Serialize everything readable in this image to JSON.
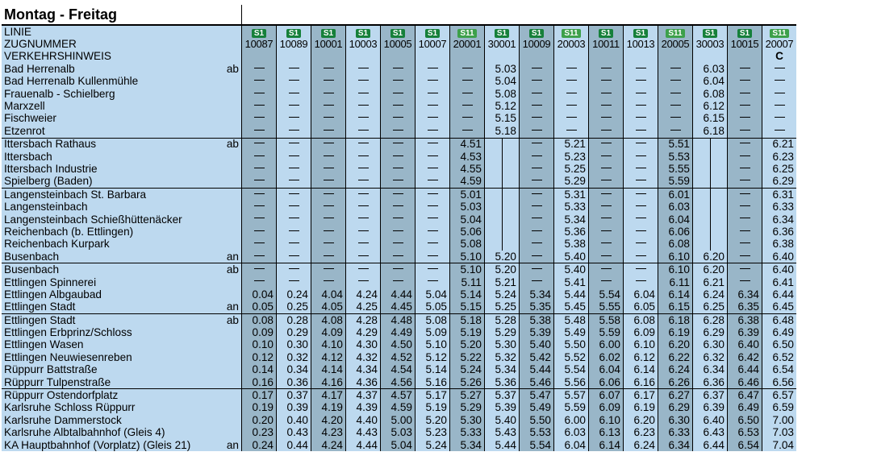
{
  "title": "Montag - Freitag",
  "header_labels": [
    "LINIE",
    "ZUGNUMMER",
    "VERKEHRSHINWEIS"
  ],
  "columns": [
    {
      "line": "S1",
      "zug": "10087",
      "note": ""
    },
    {
      "line": "S1",
      "zug": "10089",
      "note": ""
    },
    {
      "line": "S1",
      "zug": "10001",
      "note": ""
    },
    {
      "line": "S1",
      "zug": "10003",
      "note": ""
    },
    {
      "line": "S1",
      "zug": "10005",
      "note": ""
    },
    {
      "line": "S1",
      "zug": "10007",
      "note": ""
    },
    {
      "line": "S11",
      "zug": "20001",
      "note": ""
    },
    {
      "line": "S1",
      "zug": "30001",
      "note": ""
    },
    {
      "line": "S1",
      "zug": "10009",
      "note": ""
    },
    {
      "line": "S11",
      "zug": "20003",
      "note": ""
    },
    {
      "line": "S1",
      "zug": "10011",
      "note": ""
    },
    {
      "line": "S1",
      "zug": "10013",
      "note": ""
    },
    {
      "line": "S11",
      "zug": "20005",
      "note": ""
    },
    {
      "line": "S1",
      "zug": "30003",
      "note": ""
    },
    {
      "line": "S1",
      "zug": "10015",
      "note": ""
    },
    {
      "line": "S11",
      "zug": "20007",
      "note": "C"
    }
  ],
  "rows": [
    {
      "station": "Bad Herrenalb",
      "mark": "ab",
      "sep": false,
      "times": [
        "—",
        "—",
        "—",
        "—",
        "—",
        "—",
        "—",
        "5.03",
        "—",
        "—",
        "—",
        "—",
        "—",
        "6.03",
        "—",
        "—"
      ]
    },
    {
      "station": "Bad Herrenalb Kullenmühle",
      "mark": "",
      "sep": false,
      "times": [
        "—",
        "—",
        "—",
        "—",
        "—",
        "—",
        "—",
        "5.04",
        "—",
        "—",
        "—",
        "—",
        "—",
        "6.04",
        "—",
        "—"
      ]
    },
    {
      "station": "Frauenalb - Schielberg",
      "mark": "",
      "sep": false,
      "times": [
        "—",
        "—",
        "—",
        "—",
        "—",
        "—",
        "—",
        "5.08",
        "—",
        "—",
        "—",
        "—",
        "—",
        "6.08",
        "—",
        "—"
      ]
    },
    {
      "station": "Marxzell",
      "mark": "",
      "sep": false,
      "times": [
        "—",
        "—",
        "—",
        "—",
        "—",
        "—",
        "—",
        "5.12",
        "—",
        "—",
        "—",
        "—",
        "—",
        "6.12",
        "—",
        "—"
      ]
    },
    {
      "station": "Fischweier",
      "mark": "",
      "sep": false,
      "times": [
        "—",
        "—",
        "—",
        "—",
        "—",
        "—",
        "—",
        "5.15",
        "—",
        "—",
        "—",
        "—",
        "—",
        "6.15",
        "—",
        "—"
      ]
    },
    {
      "station": "Etzenrot",
      "mark": "",
      "sep": false,
      "times": [
        "—",
        "—",
        "—",
        "—",
        "—",
        "—",
        "—",
        "5.18",
        "—",
        "—",
        "—",
        "—",
        "—",
        "6.18",
        "—",
        "—"
      ]
    },
    {
      "station": "Ittersbach Rathaus",
      "mark": "ab",
      "sep": true,
      "times": [
        "—",
        "—",
        "—",
        "—",
        "—",
        "—",
        "4.51",
        "|",
        "—",
        "5.21",
        "—",
        "—",
        "5.51",
        "|",
        "—",
        "6.21"
      ]
    },
    {
      "station": "Ittersbach",
      "mark": "",
      "sep": false,
      "times": [
        "—",
        "—",
        "—",
        "—",
        "—",
        "—",
        "4.53",
        "|",
        "—",
        "5.23",
        "—",
        "—",
        "5.53",
        "|",
        "—",
        "6.23"
      ]
    },
    {
      "station": "Ittersbach Industrie",
      "mark": "",
      "sep": false,
      "times": [
        "—",
        "—",
        "—",
        "—",
        "—",
        "—",
        "4.55",
        "|",
        "—",
        "5.25",
        "—",
        "—",
        "5.55",
        "|",
        "—",
        "6.25"
      ]
    },
    {
      "station": "Spielberg (Baden)",
      "mark": "",
      "sep": false,
      "times": [
        "—",
        "—",
        "—",
        "—",
        "—",
        "—",
        "4.59",
        "|",
        "—",
        "5.29",
        "—",
        "—",
        "5.59",
        "|",
        "—",
        "6.29"
      ]
    },
    {
      "station": "Langensteinbach St. Barbara",
      "mark": "",
      "sep": true,
      "times": [
        "—",
        "—",
        "—",
        "—",
        "—",
        "—",
        "5.01",
        "|",
        "—",
        "5.31",
        "—",
        "—",
        "6.01",
        "|",
        "—",
        "6.31"
      ]
    },
    {
      "station": "Langensteinbach",
      "mark": "",
      "sep": false,
      "times": [
        "—",
        "—",
        "—",
        "—",
        "—",
        "—",
        "5.03",
        "|",
        "—",
        "5.33",
        "—",
        "—",
        "6.03",
        "|",
        "—",
        "6.33"
      ]
    },
    {
      "station": "Langensteinbach Schießhüttenäcker",
      "mark": "",
      "sep": false,
      "times": [
        "—",
        "—",
        "—",
        "—",
        "—",
        "—",
        "5.04",
        "|",
        "—",
        "5.34",
        "—",
        "—",
        "6.04",
        "|",
        "—",
        "6.34"
      ]
    },
    {
      "station": "Reichenbach (b. Ettlingen)",
      "mark": "",
      "sep": false,
      "times": [
        "—",
        "—",
        "—",
        "—",
        "—",
        "—",
        "5.06",
        "|",
        "—",
        "5.36",
        "—",
        "—",
        "6.06",
        "|",
        "—",
        "6.36"
      ]
    },
    {
      "station": "Reichenbach Kurpark",
      "mark": "",
      "sep": false,
      "times": [
        "—",
        "—",
        "—",
        "—",
        "—",
        "—",
        "5.08",
        "|",
        "—",
        "5.38",
        "—",
        "—",
        "6.08",
        "|",
        "—",
        "6.38"
      ]
    },
    {
      "station": "Busenbach",
      "mark": "an",
      "sep": false,
      "times": [
        "—",
        "—",
        "—",
        "—",
        "—",
        "—",
        "5.10",
        "5.20",
        "—",
        "5.40",
        "—",
        "—",
        "6.10",
        "6.20",
        "—",
        "6.40"
      ]
    },
    {
      "station": "Busenbach",
      "mark": "ab",
      "sep": true,
      "times": [
        "—",
        "—",
        "—",
        "—",
        "—",
        "—",
        "5.10",
        "5.20",
        "—",
        "5.40",
        "—",
        "—",
        "6.10",
        "6.20",
        "—",
        "6.40"
      ]
    },
    {
      "station": "Ettlingen Spinnerei",
      "mark": "",
      "sep": false,
      "times": [
        "—",
        "—",
        "—",
        "—",
        "—",
        "—",
        "5.11",
        "5.21",
        "—",
        "5.41",
        "—",
        "—",
        "6.11",
        "6.21",
        "—",
        "6.41"
      ]
    },
    {
      "station": "Ettlingen Albgaubad",
      "mark": "",
      "sep": false,
      "times": [
        "0.04",
        "0.24",
        "4.04",
        "4.24",
        "4.44",
        "5.04",
        "5.14",
        "5.24",
        "5.34",
        "5.44",
        "5.54",
        "6.04",
        "6.14",
        "6.24",
        "6.34",
        "6.44"
      ]
    },
    {
      "station": "Ettlingen Stadt",
      "mark": "an",
      "sep": false,
      "times": [
        "0.05",
        "0.25",
        "4.05",
        "4.25",
        "4.45",
        "5.05",
        "5.15",
        "5.25",
        "5.35",
        "5.45",
        "5.55",
        "6.05",
        "6.15",
        "6.25",
        "6.35",
        "6.45"
      ]
    },
    {
      "station": "Ettlingen Stadt",
      "mark": "ab",
      "sep": true,
      "times": [
        "0.08",
        "0.28",
        "4.08",
        "4.28",
        "4.48",
        "5.08",
        "5.18",
        "5.28",
        "5.38",
        "5.48",
        "5.58",
        "6.08",
        "6.18",
        "6.28",
        "6.38",
        "6.48"
      ]
    },
    {
      "station": "Ettlingen Erbprinz/Schloss",
      "mark": "",
      "sep": false,
      "times": [
        "0.09",
        "0.29",
        "4.09",
        "4.29",
        "4.49",
        "5.09",
        "5.19",
        "5.29",
        "5.39",
        "5.49",
        "5.59",
        "6.09",
        "6.19",
        "6.29",
        "6.39",
        "6.49"
      ]
    },
    {
      "station": "Ettlingen Wasen",
      "mark": "",
      "sep": false,
      "times": [
        "0.10",
        "0.30",
        "4.10",
        "4.30",
        "4.50",
        "5.10",
        "5.20",
        "5.30",
        "5.40",
        "5.50",
        "6.00",
        "6.10",
        "6.20",
        "6.30",
        "6.40",
        "6.50"
      ]
    },
    {
      "station": "Ettlingen Neuwiesenreben",
      "mark": "",
      "sep": false,
      "times": [
        "0.12",
        "0.32",
        "4.12",
        "4.32",
        "4.52",
        "5.12",
        "5.22",
        "5.32",
        "5.42",
        "5.52",
        "6.02",
        "6.12",
        "6.22",
        "6.32",
        "6.42",
        "6.52"
      ]
    },
    {
      "station": "Rüppurr Battstraße",
      "mark": "",
      "sep": false,
      "times": [
        "0.14",
        "0.34",
        "4.14",
        "4.34",
        "4.54",
        "5.14",
        "5.24",
        "5.34",
        "5.44",
        "5.54",
        "6.04",
        "6.14",
        "6.24",
        "6.34",
        "6.44",
        "6.54"
      ]
    },
    {
      "station": "Rüppurr Tulpenstraße",
      "mark": "",
      "sep": false,
      "times": [
        "0.16",
        "0.36",
        "4.16",
        "4.36",
        "4.56",
        "5.16",
        "5.26",
        "5.36",
        "5.46",
        "5.56",
        "6.06",
        "6.16",
        "6.26",
        "6.36",
        "6.46",
        "6.56"
      ]
    },
    {
      "station": "Rüppurr Ostendorfplatz",
      "mark": "",
      "sep": true,
      "times": [
        "0.17",
        "0.37",
        "4.17",
        "4.37",
        "4.57",
        "5.17",
        "5.27",
        "5.37",
        "5.47",
        "5.57",
        "6.07",
        "6.17",
        "6.27",
        "6.37",
        "6.47",
        "6.57"
      ]
    },
    {
      "station": "Karlsruhe Schloss Rüppurr",
      "mark": "",
      "sep": false,
      "times": [
        "0.19",
        "0.39",
        "4.19",
        "4.39",
        "4.59",
        "5.19",
        "5.29",
        "5.39",
        "5.49",
        "5.59",
        "6.09",
        "6.19",
        "6.29",
        "6.39",
        "6.49",
        "6.59"
      ]
    },
    {
      "station": "Karlsruhe Dammerstock",
      "mark": "",
      "sep": false,
      "times": [
        "0.20",
        "0.40",
        "4.20",
        "4.40",
        "5.00",
        "5.20",
        "5.30",
        "5.40",
        "5.50",
        "6.00",
        "6.10",
        "6.20",
        "6.30",
        "6.40",
        "6.50",
        "7.00"
      ]
    },
    {
      "station": "Karlsruhe Albtalbahnhof (Gleis 4)",
      "mark": "",
      "sep": false,
      "times": [
        "0.23",
        "0.43",
        "4.23",
        "4.43",
        "5.03",
        "5.23",
        "5.33",
        "5.43",
        "5.53",
        "6.03",
        "6.13",
        "6.23",
        "6.33",
        "6.43",
        "6.53",
        "7.03"
      ]
    },
    {
      "station": "KA Hauptbahnhof (Vorplatz) (Gleis 21)",
      "mark": "an",
      "sep": false,
      "times": [
        "0.24",
        "0.44",
        "4.24",
        "4.44",
        "5.04",
        "5.24",
        "5.34",
        "5.44",
        "5.54",
        "6.04",
        "6.14",
        "6.24",
        "6.34",
        "6.44",
        "6.54",
        "7.04"
      ]
    }
  ]
}
